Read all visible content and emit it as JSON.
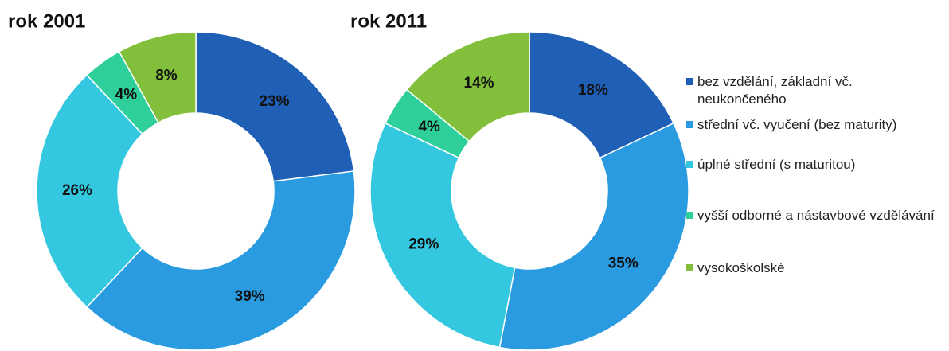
{
  "chart_data": [
    {
      "type": "donut",
      "title": "rok 2001",
      "values": [
        23,
        39,
        26,
        4,
        8
      ],
      "value_labels": [
        "23%",
        "39%",
        "26%",
        "4%",
        "8%"
      ]
    },
    {
      "type": "donut",
      "title": "rok 2011",
      "values": [
        18,
        35,
        29,
        4,
        14
      ],
      "value_labels": [
        "18%",
        "35%",
        "29%",
        "4%",
        "14%"
      ]
    }
  ],
  "legend": {
    "entries": [
      "bez vzdělání, základní vč. neukončeného",
      "střední vč. vyučení (bez maturity)",
      "úplné střední (s maturitou)",
      "vyšší odborné a nástavbové vzdělávání",
      "vysokoškolské"
    ],
    "colors": [
      "#1f5fb5",
      "#2a9be0",
      "#34c8e0",
      "#2ecf9a",
      "#82bf3a"
    ]
  }
}
